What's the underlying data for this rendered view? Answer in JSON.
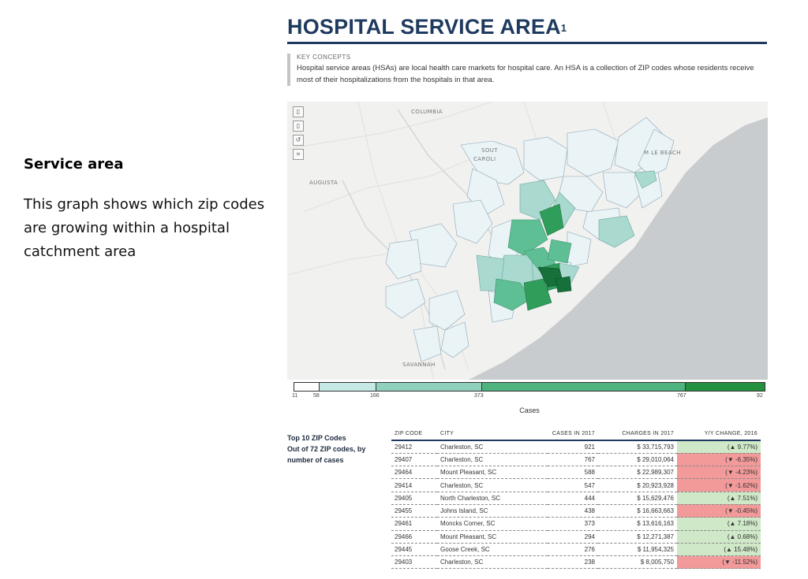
{
  "left": {
    "title": "Service area",
    "description": "This graph shows which zip codes are growing within a hospital catchment area"
  },
  "report": {
    "title": "HOSPITAL SERVICE AREA",
    "title_superscript": "1",
    "concepts_label": "KEY CONCEPTS",
    "concepts_text": "Hospital service areas (HSAs) are local health care markets for hospital care. An HSA is a collection of ZIP codes whose residents receive most of their hospitalizations from the hospitals in that area."
  },
  "map": {
    "tools": [
      {
        "icon": "zoom-in-icon",
        "glyph": "▯"
      },
      {
        "icon": "zoom-out-icon",
        "glyph": "▯"
      },
      {
        "icon": "reset-icon",
        "glyph": "↺"
      },
      {
        "icon": "select-icon",
        "glyph": "⌗"
      }
    ],
    "cities": {
      "columbia": "COLUMBIA",
      "south_carolina_1": "SOUT",
      "south_carolina_2": "CAROLI",
      "augusta": "AUGUSTA",
      "myrtle_beach": "M  LE BEACH",
      "savannah": "SAVANNAH"
    },
    "colors": {
      "water": "#c9ccce",
      "land": "#f1f1ef",
      "level1": "#eaf4f7",
      "level2": "#a9d9cf",
      "level3": "#5fbf94",
      "level4": "#2f9e5b",
      "level5": "#15703a"
    }
  },
  "legend": {
    "title": "Cases",
    "ticks": [
      "11",
      "58",
      "166",
      "373",
      "767",
      "92"
    ],
    "colors": [
      "#ffffff",
      "#c6e9e6",
      "#8fd1bd",
      "#4fb37f",
      "#23913f",
      "#0b6a26"
    ]
  },
  "table": {
    "side_label": [
      "Top 10 ZIP Codes",
      "Out of 72 ZIP codes, by",
      "number of cases"
    ],
    "headers": [
      "ZIP CODE",
      "CITY",
      "CASES IN 2017",
      "CHARGES IN 2017",
      "Y/Y CHANGE, 2016"
    ],
    "rows": [
      {
        "zip": "29412",
        "city": "Charleston, SC",
        "cases": "921",
        "charges": "$ 33,715,793",
        "change": "(▲ 9.77%)",
        "trend": "pos"
      },
      {
        "zip": "29407",
        "city": "Charleston, SC",
        "cases": "767",
        "charges": "$ 29,010,064",
        "change": "(▼ -6.35%)",
        "trend": "neg"
      },
      {
        "zip": "29464",
        "city": "Mount Pleasant, SC",
        "cases": "588",
        "charges": "$ 22,989,307",
        "change": "(▼ -4.23%)",
        "trend": "neg"
      },
      {
        "zip": "29414",
        "city": "Charleston, SC",
        "cases": "547",
        "charges": "$ 20,923,928",
        "change": "(▼ -1.62%)",
        "trend": "neg"
      },
      {
        "zip": "29405",
        "city": "North Charleston, SC",
        "cases": "444",
        "charges": "$ 15,629,476",
        "change": "(▲ 7.51%)",
        "trend": "pos"
      },
      {
        "zip": "29455",
        "city": "Johns Island, SC",
        "cases": "438",
        "charges": "$ 16,663,663",
        "change": "(▼ -0.45%)",
        "trend": "neg"
      },
      {
        "zip": "29461",
        "city": "Moncks Corner, SC",
        "cases": "373",
        "charges": "$ 13,616,163",
        "change": "(▲ 7.18%)",
        "trend": "pos"
      },
      {
        "zip": "29466",
        "city": "Mount Pleasant, SC",
        "cases": "294",
        "charges": "$ 12,271,387",
        "change": "(▲ 0.68%)",
        "trend": "pos"
      },
      {
        "zip": "29445",
        "city": "Goose Creek, SC",
        "cases": "276",
        "charges": "$ 11,954,325",
        "change": "(▲ 15.48%)",
        "trend": "pos"
      },
      {
        "zip": "29403",
        "city": "Charleston, SC",
        "cases": "238",
        "charges": "$ 8,005,750",
        "change": "(▼ -11.52%)",
        "trend": "neg"
      }
    ]
  }
}
